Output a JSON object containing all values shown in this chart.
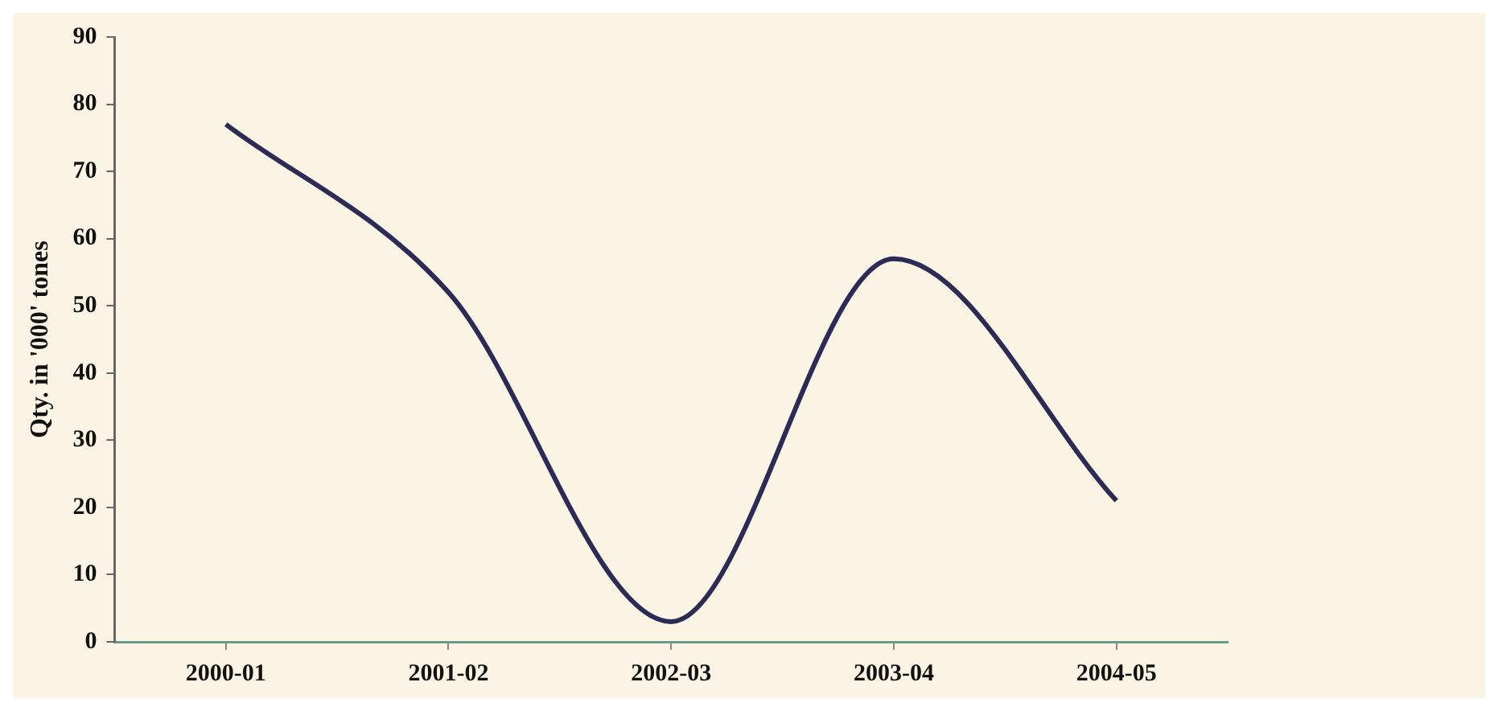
{
  "chart_data": {
    "type": "line",
    "ylabel": "Qty. in '000' tones",
    "categories": [
      "2000-01",
      "2001-02",
      "2002-03",
      "2003-04",
      "2004-05"
    ],
    "series": [
      {
        "color": "#2b2b55",
        "values": [
          77,
          52,
          3,
          57,
          21
        ]
      }
    ],
    "ylim": [
      0,
      90
    ],
    "yticks": [
      0,
      10,
      20,
      30,
      40,
      50,
      60,
      70,
      80,
      90
    ],
    "grid": false,
    "legend": false,
    "marker": "none",
    "line_style": "solid"
  }
}
